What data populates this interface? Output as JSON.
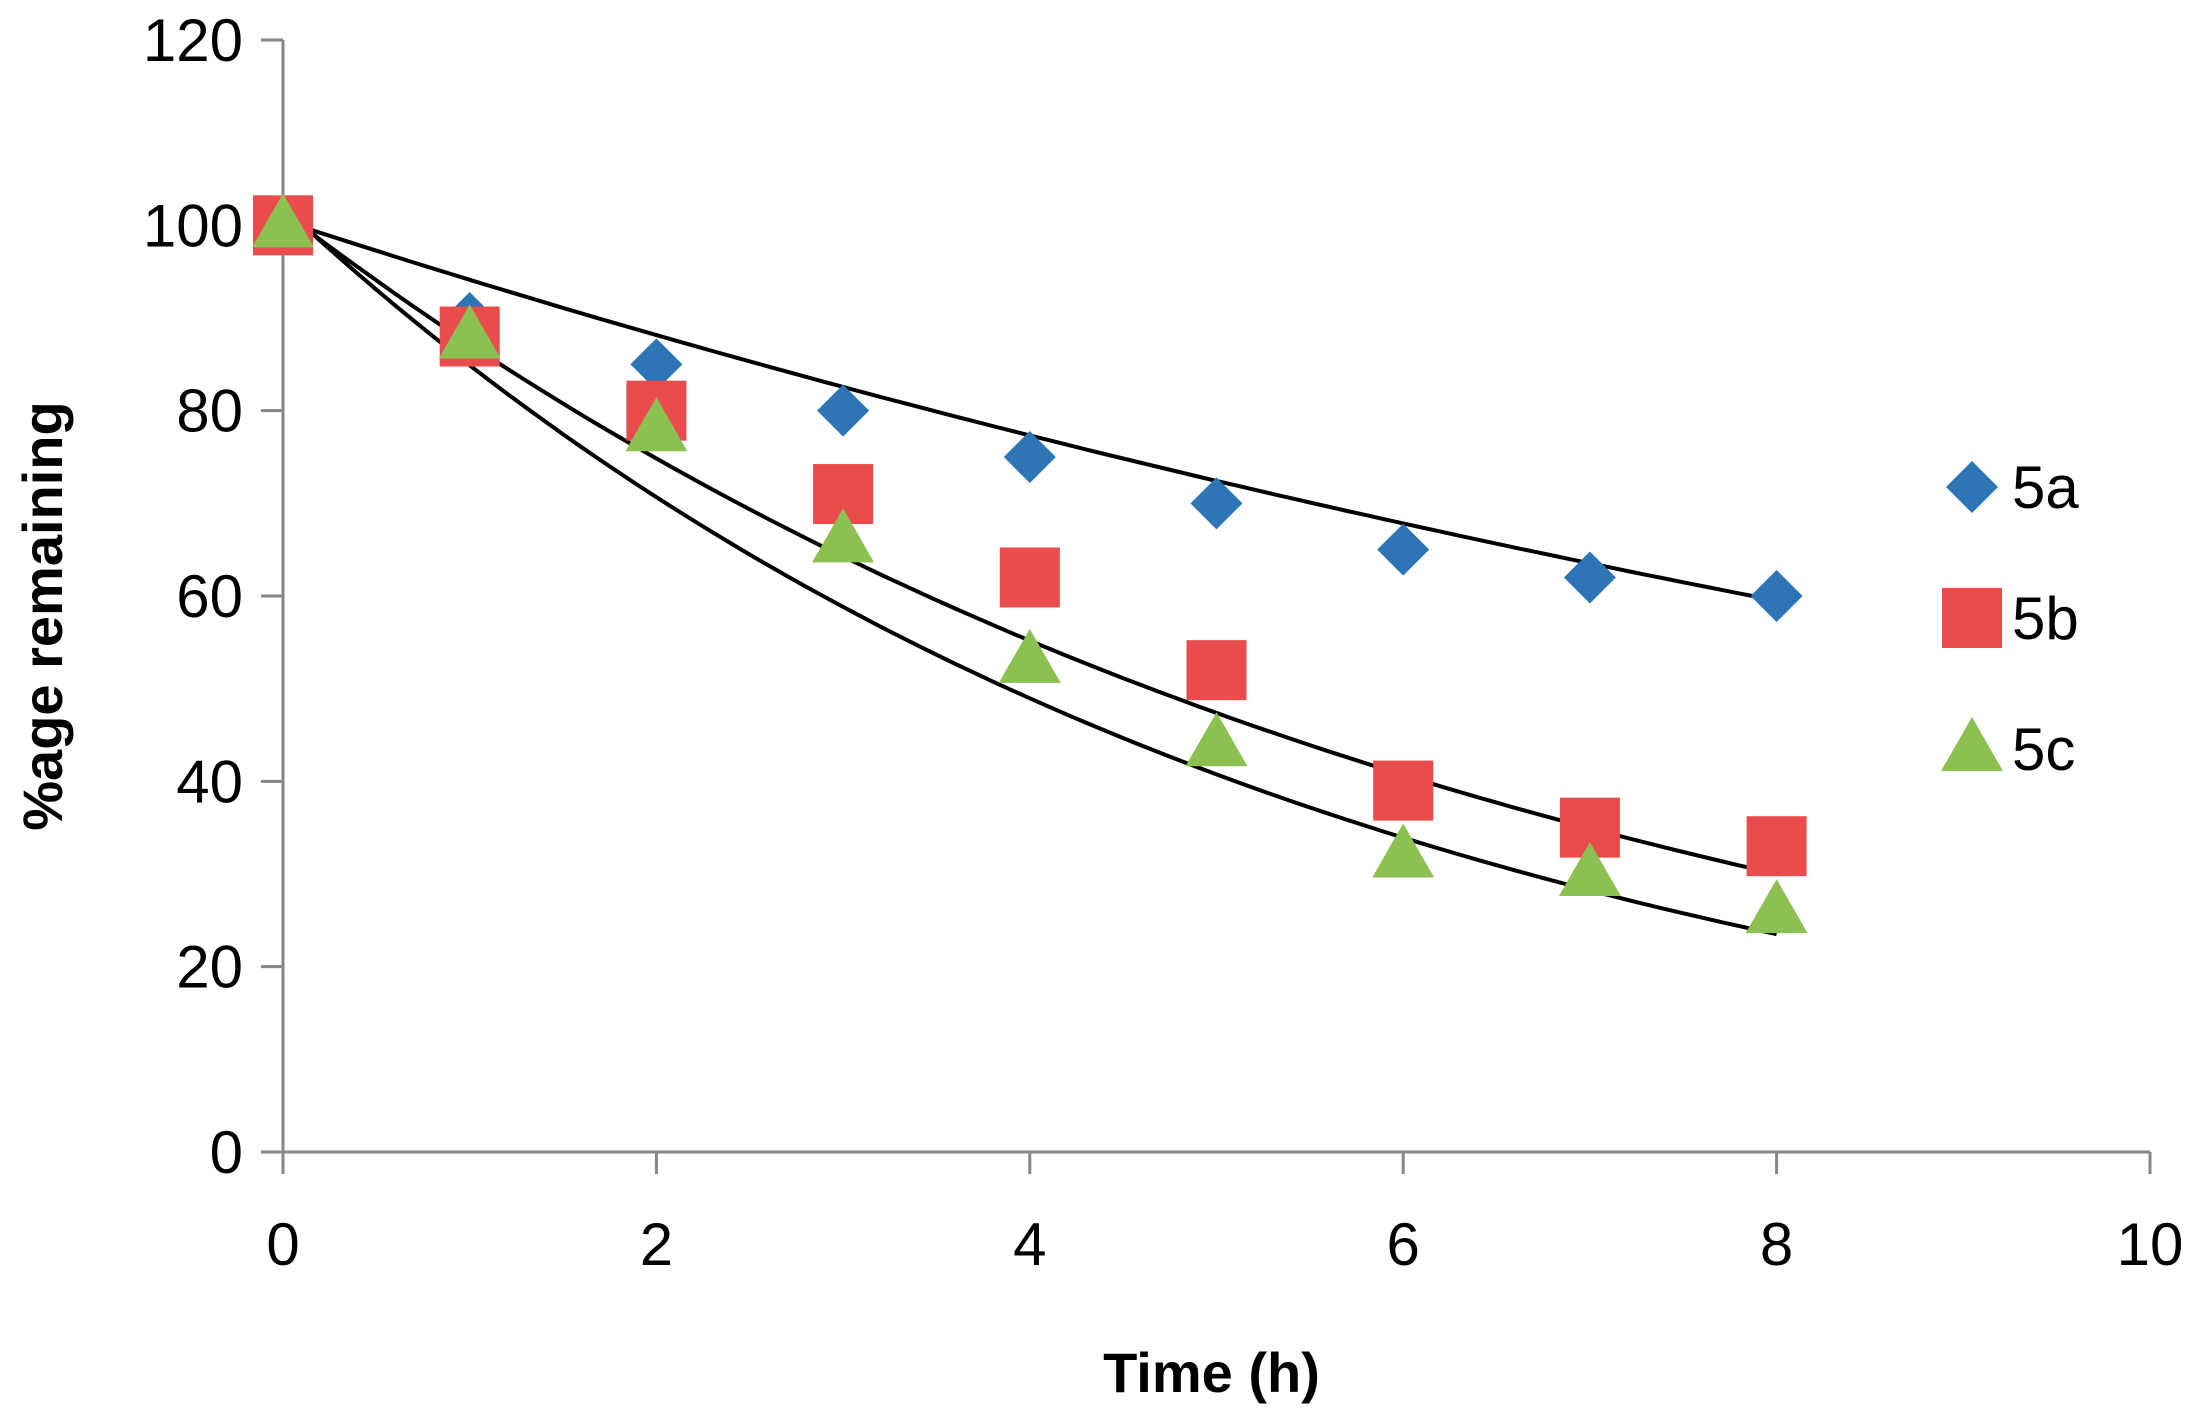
{
  "chart_data": {
    "type": "scatter",
    "title": "",
    "xlabel": "Time (h)",
    "ylabel": "%age remaining",
    "xlim": [
      0,
      10
    ],
    "ylim": [
      0,
      120
    ],
    "xticks": [
      "0",
      "2",
      "4",
      "6",
      "8",
      "10"
    ],
    "xtick_values": [
      0,
      2,
      4,
      6,
      8,
      10
    ],
    "yticks": [
      "0",
      "20",
      "40",
      "60",
      "80",
      "100",
      "120"
    ],
    "ytick_values": [
      0,
      20,
      40,
      60,
      80,
      100,
      120
    ],
    "grid": false,
    "legend_position": "right",
    "x": [
      0,
      1,
      2,
      3,
      4,
      5,
      6,
      7,
      8
    ],
    "series": [
      {
        "name": "5a",
        "marker": "diamond",
        "color": "#2E75B6",
        "values": [
          100,
          90,
          85,
          80,
          75,
          70,
          65,
          62,
          60
        ],
        "trendline": {
          "type": "exponential",
          "start": 100.5,
          "end": 59.5
        }
      },
      {
        "name": "5b",
        "marker": "square",
        "color": "#E84C4C",
        "values": [
          100,
          88,
          80,
          71,
          62,
          52,
          39,
          35,
          33
        ],
        "trendline": {
          "type": "exponential",
          "start": 101.5,
          "end": 30
        }
      },
      {
        "name": "5c",
        "marker": "triangle",
        "color": "#8CC152",
        "values": [
          100,
          88,
          78,
          66,
          53,
          44,
          32,
          30,
          26
        ],
        "trendline": {
          "type": "exponential",
          "start": 102,
          "end": 23.5
        }
      }
    ]
  }
}
